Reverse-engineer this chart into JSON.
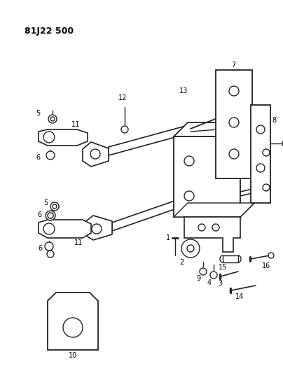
{
  "title": "81J22 500",
  "bg": "#ffffff",
  "lc": "#222222",
  "tc": "#000000",
  "figsize": [
    4.04,
    5.33
  ],
  "dpi": 100
}
